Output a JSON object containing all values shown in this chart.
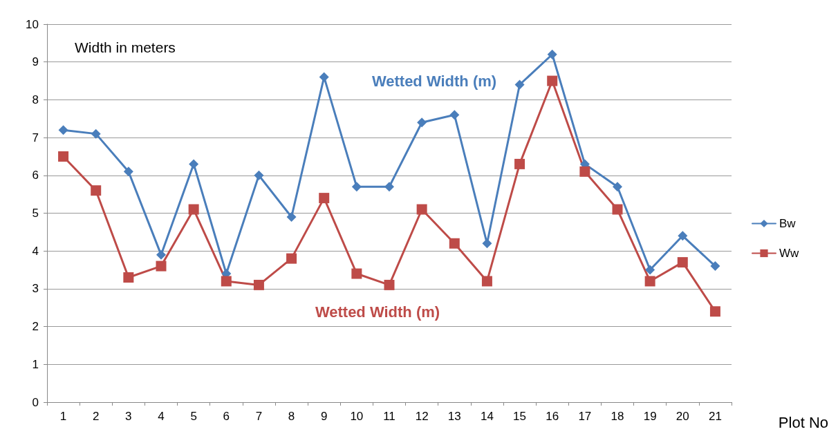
{
  "chart_data": {
    "type": "line",
    "ylabel": "Width in meters",
    "xlabel": "Plot No",
    "categories": [
      "1",
      "2",
      "3",
      "4",
      "5",
      "6",
      "7",
      "8",
      "9",
      "10",
      "11",
      "12",
      "13",
      "14",
      "15",
      "16",
      "17",
      "18",
      "19",
      "20",
      "21"
    ],
    "series": [
      {
        "name": "Bw",
        "color": "#4a7ebb",
        "marker": "diamond",
        "values": [
          7.2,
          7.1,
          6.1,
          3.9,
          6.3,
          3.4,
          6.0,
          4.9,
          8.6,
          5.7,
          5.7,
          7.4,
          7.6,
          4.2,
          8.4,
          9.2,
          6.3,
          5.7,
          3.5,
          4.4,
          3.6
        ]
      },
      {
        "name": "Ww",
        "color": "#be4b48",
        "marker": "square",
        "values": [
          6.5,
          5.6,
          3.3,
          3.6,
          5.1,
          3.2,
          3.1,
          3.8,
          5.4,
          3.4,
          3.1,
          5.1,
          4.2,
          3.2,
          6.3,
          8.5,
          6.1,
          5.1,
          3.2,
          3.7,
          2.4
        ]
      }
    ],
    "ylim": [
      0,
      10
    ],
    "yticks": [
      0,
      1,
      2,
      3,
      4,
      5,
      6,
      7,
      8,
      9,
      10
    ],
    "grid": "y",
    "legend": "right",
    "line_style": "solid",
    "annotations": [
      "Wetted Width (m)",
      "Wetted Width (m)"
    ]
  }
}
